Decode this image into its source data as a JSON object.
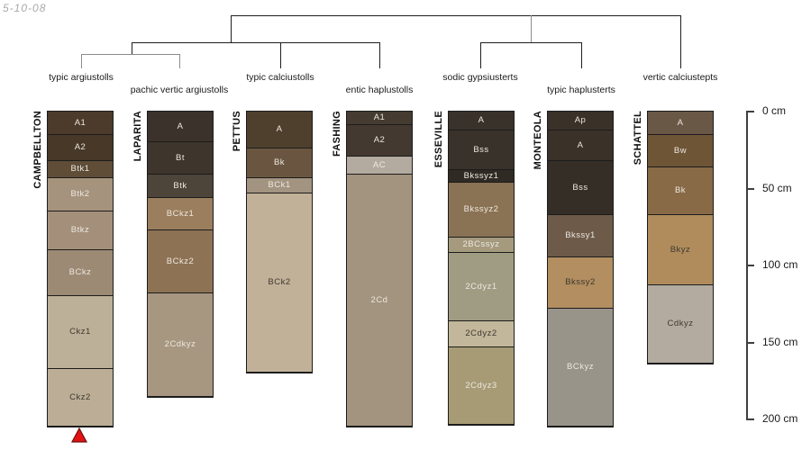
{
  "meta": {
    "date_label": "5-10-08"
  },
  "taxonomy_tree": {
    "groups": [
      {
        "label": "typic argiustolls"
      },
      {
        "label": "pachic vertic argiustolls"
      },
      {
        "label": "typic calciustolls"
      },
      {
        "label": "entic haplustolls"
      },
      {
        "label": "sodic gypsiusterts"
      },
      {
        "label": "typic haplusterts"
      },
      {
        "label": "vertic calciustepts"
      }
    ]
  },
  "depth_scale": {
    "unit": "cm",
    "tick_values": [
      0,
      50,
      100,
      150,
      200
    ],
    "tick_labels": [
      "0 cm",
      "50 cm",
      "100 cm",
      "150 cm",
      "200 cm"
    ]
  },
  "marker": {
    "shape": "red-triangle",
    "color": "#e31212",
    "outline": "#6b0f0f"
  },
  "columns": [
    {
      "series": "CAMPBELLTON",
      "subgroup": "typic argiustolls",
      "marker": "red-triangle",
      "horizons": [
        {
          "label": "A1",
          "top_cm": 0,
          "bottom_cm": 15,
          "color": "#4c3b2b",
          "text_color": "light"
        },
        {
          "label": "A2",
          "top_cm": 15,
          "bottom_cm": 32,
          "color": "#483828",
          "text_color": "light"
        },
        {
          "label": "Btk1",
          "top_cm": 32,
          "bottom_cm": 43,
          "color": "#5f4d38",
          "text_color": "light"
        },
        {
          "label": "Btk2",
          "top_cm": 43,
          "bottom_cm": 65,
          "color": "#a6937d",
          "text_color": "light"
        },
        {
          "label": "Btkz",
          "top_cm": 65,
          "bottom_cm": 90,
          "color": "#a4907a",
          "text_color": "light"
        },
        {
          "label": "BCkz",
          "top_cm": 90,
          "bottom_cm": 120,
          "color": "#9c8a75",
          "text_color": "light"
        },
        {
          "label": "Ckz1",
          "top_cm": 120,
          "bottom_cm": 167,
          "color": "#bdb098",
          "text_color": "dark"
        },
        {
          "label": "Ckz2",
          "top_cm": 167,
          "bottom_cm": 204,
          "color": "#bcae96",
          "text_color": "dark"
        }
      ]
    },
    {
      "series": "LAPARITA",
      "subgroup": "pachic vertic argiustolls",
      "marker": null,
      "horizons": [
        {
          "label": "A",
          "top_cm": 0,
          "bottom_cm": 20,
          "color": "#3b332b",
          "text_color": "light"
        },
        {
          "label": "Bt",
          "top_cm": 20,
          "bottom_cm": 41,
          "color": "#3e352c",
          "text_color": "light"
        },
        {
          "label": "Btk",
          "top_cm": 41,
          "bottom_cm": 56,
          "color": "#4d443a",
          "text_color": "light"
        },
        {
          "label": "BCkz1",
          "top_cm": 56,
          "bottom_cm": 77,
          "color": "#9a7e5d",
          "text_color": "light"
        },
        {
          "label": "BCkz2",
          "top_cm": 77,
          "bottom_cm": 118,
          "color": "#8d7254",
          "text_color": "light"
        },
        {
          "label": "2Cdkyz",
          "top_cm": 118,
          "bottom_cm": 185,
          "color": "#a79781",
          "text_color": "light"
        }
      ]
    },
    {
      "series": "PETTUS",
      "subgroup": "typic calciustolls",
      "marker": null,
      "horizons": [
        {
          "label": "A",
          "top_cm": 0,
          "bottom_cm": 24,
          "color": "#4f3f2d",
          "text_color": "light"
        },
        {
          "label": "Bk",
          "top_cm": 24,
          "bottom_cm": 43,
          "color": "#6a5640",
          "text_color": "light"
        },
        {
          "label": "BCk1",
          "top_cm": 43,
          "bottom_cm": 53,
          "color": "#a29480",
          "text_color": "light"
        },
        {
          "label": "BCk2",
          "top_cm": 53,
          "bottom_cm": 169,
          "color": "#c2b199",
          "text_color": "dark"
        }
      ]
    },
    {
      "series": "FASHING",
      "subgroup": "entic haplustolls",
      "marker": null,
      "horizons": [
        {
          "label": "A1",
          "top_cm": 0,
          "bottom_cm": 9,
          "color": "#453b31",
          "text_color": "light"
        },
        {
          "label": "A2",
          "top_cm": 9,
          "bottom_cm": 29,
          "color": "#433930",
          "text_color": "light"
        },
        {
          "label": "AC",
          "top_cm": 29,
          "bottom_cm": 41,
          "color": "#b4aba0",
          "text_color": "light"
        },
        {
          "label": "2Cd",
          "top_cm": 41,
          "bottom_cm": 204,
          "color": "#a3947f",
          "text_color": "light"
        }
      ]
    },
    {
      "series": "ESSEVILLE",
      "subgroup": "sodic gypsiusterts",
      "marker": null,
      "horizons": [
        {
          "label": "A",
          "top_cm": 0,
          "bottom_cm": 12,
          "color": "#39322b",
          "text_color": "light"
        },
        {
          "label": "Bss",
          "top_cm": 12,
          "bottom_cm": 38,
          "color": "#39322b",
          "text_color": "light"
        },
        {
          "label": "Bkssyz1",
          "top_cm": 38,
          "bottom_cm": 46,
          "color": "#2f2a24",
          "text_color": "light"
        },
        {
          "label": "Bkssyz2",
          "top_cm": 46,
          "bottom_cm": 82,
          "color": "#8a7254",
          "text_color": "light"
        },
        {
          "label": "2BCssyz",
          "top_cm": 82,
          "bottom_cm": 92,
          "color": "#a59a7e",
          "text_color": "light"
        },
        {
          "label": "2Cdyz1",
          "top_cm": 92,
          "bottom_cm": 136,
          "color": "#9f9c83",
          "text_color": "light"
        },
        {
          "label": "2Cdyz2",
          "top_cm": 136,
          "bottom_cm": 153,
          "color": "#c3b79b",
          "text_color": "dark"
        },
        {
          "label": "2Cdyz3",
          "top_cm": 153,
          "bottom_cm": 203,
          "color": "#a79b76",
          "text_color": "light"
        }
      ]
    },
    {
      "series": "MONTEOLA",
      "subgroup": "typic haplusterts",
      "marker": null,
      "horizons": [
        {
          "label": "Ap",
          "top_cm": 0,
          "bottom_cm": 12,
          "color": "#3a3129",
          "text_color": "light"
        },
        {
          "label": "A",
          "top_cm": 12,
          "bottom_cm": 32,
          "color": "#3a3129",
          "text_color": "light"
        },
        {
          "label": "Bss",
          "top_cm": 32,
          "bottom_cm": 67,
          "color": "#352e27",
          "text_color": "light"
        },
        {
          "label": "Bkssy1",
          "top_cm": 67,
          "bottom_cm": 95,
          "color": "#6d5a49",
          "text_color": "light"
        },
        {
          "label": "Bkssy2",
          "top_cm": 95,
          "bottom_cm": 128,
          "color": "#b28e60",
          "text_color": "dark"
        },
        {
          "label": "BCkyz",
          "top_cm": 128,
          "bottom_cm": 204,
          "color": "#99948a",
          "text_color": "light"
        }
      ]
    },
    {
      "series": "SCHATTEL",
      "subgroup": "vertic calciustepts",
      "marker": null,
      "horizons": [
        {
          "label": "A",
          "top_cm": 0,
          "bottom_cm": 15,
          "color": "#6a5846",
          "text_color": "light"
        },
        {
          "label": "Bw",
          "top_cm": 15,
          "bottom_cm": 36,
          "color": "#6e5536",
          "text_color": "light"
        },
        {
          "label": "Bk",
          "top_cm": 36,
          "bottom_cm": 67,
          "color": "#886a46",
          "text_color": "light"
        },
        {
          "label": "Bkyz",
          "top_cm": 67,
          "bottom_cm": 113,
          "color": "#b08c5c",
          "text_color": "dark"
        },
        {
          "label": "Cdkyz",
          "top_cm": 113,
          "bottom_cm": 163,
          "color": "#b3aba0",
          "text_color": "dark"
        }
      ]
    }
  ]
}
